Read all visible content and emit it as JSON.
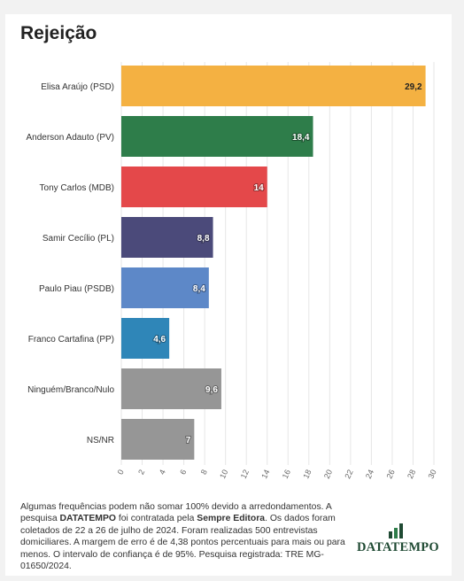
{
  "header": {
    "title": "Rejeição"
  },
  "chart_data": {
    "type": "bar",
    "orientation": "horizontal",
    "title": "Rejeição",
    "categories": [
      "Elisa Araújo (PSD)",
      "Anderson Adauto (PV)",
      "Tony Carlos (MDB)",
      "Samir Cecílio (PL)",
      "Paulo Piau (PSDB)",
      "Franco Cartafina (PP)",
      "Ninguém/Branco/Nulo",
      "NS/NR"
    ],
    "values": [
      29.2,
      18.4,
      14,
      8.8,
      8.4,
      4.6,
      9.6,
      7
    ],
    "value_labels": [
      "29,2",
      "18,4",
      "14",
      "8,8",
      "8,4",
      "4,6",
      "9,6",
      "7"
    ],
    "colors": [
      "#f4b142",
      "#2e7d4a",
      "#e4484a",
      "#4b4a7a",
      "#5d88c8",
      "#2f86b8",
      "#969696",
      "#969696"
    ],
    "xlim": [
      0,
      30
    ],
    "xticks": [
      "0",
      "2",
      "4",
      "6",
      "8",
      "10",
      "12",
      "14",
      "16",
      "18",
      "20",
      "22",
      "24",
      "26",
      "28",
      "30"
    ],
    "grid": true
  },
  "footer": {
    "note_part1": "Algumas frequências podem não somar 100% devido a arredondamentos. A pesquisa ",
    "note_brand": "DATATEMPO",
    "note_part2": " foi contratada pela ",
    "note_client": "Sempre Editora",
    "note_part3": ". Os dados foram coletados de 22 a 26 de julho de 2024. Foram realizadas 500 entrevistas domiciliares. A margem de erro é de 4,38 pontos percentuais para mais ou para menos. O intervalo de confiança é de 95%. Pesquisa registrada: TRE MG-01650/2024.",
    "logo_text": "DATATEMPO",
    "logo_color": "#1f4a33"
  }
}
